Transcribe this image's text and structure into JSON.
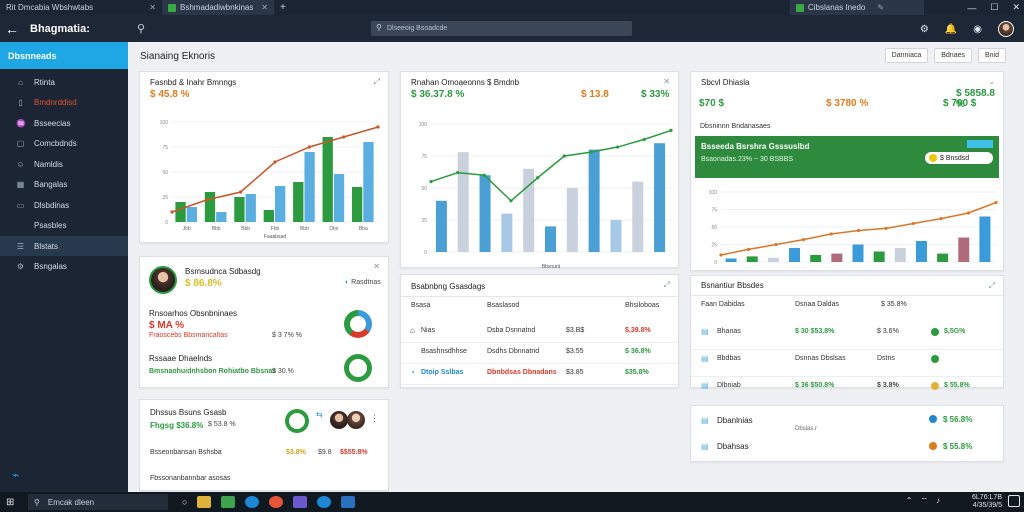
{
  "browser": {
    "tab1_title": "Rit Dmcabia Wbshwtabs",
    "tab2_title": "Bshmadadiwbnkinas",
    "tab3_title": "Cibslanas Inedo",
    "new_tab": "+",
    "icons": [
      "close-icon",
      "minimize-icon",
      "maximize-icon"
    ]
  },
  "header": {
    "title": "Bhagmatia:",
    "search_placeholder": "Dlseeoig Bsoadcde"
  },
  "sidebar": {
    "active_label": "Dbsnneads",
    "items": [
      {
        "label": "Rtinta",
        "icon": "home-icon"
      },
      {
        "label": "Bmdnrddisd",
        "icon": "doc-icon",
        "red": true
      },
      {
        "label": "Bsseecias",
        "icon": "chart-icon"
      },
      {
        "label": "Comcbdnds",
        "icon": "box-icon"
      },
      {
        "label": "Namldis",
        "icon": "user-icon"
      },
      {
        "label": "Bangalas",
        "icon": "grid-icon"
      },
      {
        "label": "Dlsbdinas",
        "icon": "folder-icon"
      },
      {
        "label": "Psasbles",
        "icon": ""
      },
      {
        "label": "Blstats",
        "icon": "list-icon",
        "selected": true
      },
      {
        "label": "Bsngalas",
        "icon": "settings-icon"
      }
    ]
  },
  "main": {
    "page_title": "Sianaing Eknoris",
    "buttons": [
      "Danniaca",
      "Bdnaes",
      "Bnid"
    ]
  },
  "card1": {
    "title": "Fasnbd & Inahr Bmnngs",
    "stat": "$ 45.8 %",
    "xlabel": "Faaabsad",
    "ticks_x": [
      "Jbb",
      "Bbb",
      "Bbb",
      "Fbb",
      "Bbb",
      "Dbs",
      "Bba"
    ]
  },
  "card2": {
    "title": "Rnahan Omoaeonns $ Bmdnb",
    "stat1": "$ 36.37.8 %",
    "stat2": "$ 13.8",
    "stat3": "$ 33%",
    "xlabel": "Bbsnunt"
  },
  "card3": {
    "title": "Sbcvl Dhiasla",
    "stat1": "$70 $",
    "stat2": "$ 3780 %",
    "stat3": "$ 5858.8 %",
    "stat4": "$ 790 $",
    "sub_label": "Dbsninnn Bndanasaes",
    "banner_title": "Bsseeda Bsrshra Gsssuslbd",
    "banner_sub": "Bsaonadas.23% ~ 30 BSBBS",
    "banner_btn": "$ Bnsdsd",
    "x": "28"
  },
  "card4": {
    "title": "Bsmsudnca Sdbasdg",
    "stat": "$ 86.8%",
    "row1_title": "Rnsoarhos Obsnbninaes",
    "row1_val": "$ MA %",
    "row1_sub": "Fraoscebs Bbsmancaltas",
    "row1_num": "$ 3 7% %",
    "row2_title": "Rssaae Dhaelnds",
    "row2_val": "Bmsnaohuidnhsbon Rohiatbo Bbsnas",
    "row2_num": "$ 30.%"
  },
  "card5": {
    "title": "Dhssus Bsuns Gsasb",
    "stat": "Fhgsg $36.8%",
    "sub1": "$ 53.8 %",
    "row_label": "Bsseonbansan Bshsba",
    "row_v1": "$3.8%",
    "row_v2": "$9.8",
    "row_v3": "$$55.8%",
    "row2_label": "Fbssonanbannbar asosas"
  },
  "card6": {
    "title": "Bsabnbng Gsasdags",
    "header": [
      "Bsasa",
      "Bsaslasod",
      "Bhsiloboas"
    ],
    "rows": [
      {
        "a": "Nias",
        "b": "Dsba Dsnnatnd",
        "c": "$3.B$",
        "d": "$,39.8%"
      },
      {
        "a": "Bsashnsdhhse",
        "b": "Dsdhs Dbnnatnd",
        "c": "$3.55",
        "d": "$ 36.8%"
      },
      {
        "a": "Dtoip Sslbas",
        "b": "Dbnbdsas Dbnadans",
        "c": "$3.85",
        "d": "$35.8%"
      }
    ]
  },
  "card7": {
    "title": "Bsnantiur Bbsdes",
    "header": [
      "Faan Dabidas",
      "Dsnaa Daldas",
      "$ 35.8%"
    ],
    "rows": [
      {
        "a": "Bhanas",
        "b": "$ 30 $53.8%",
        "c": "$ 3.6%",
        "d": "$,5G%"
      },
      {
        "a": "Bbdbas",
        "b": "Dsnnas Dbslsas",
        "c": "Dstns",
        "d": ""
      },
      {
        "a": "Dlbniab",
        "b": "$ 36 $50.8%",
        "c": "$ 3.8%",
        "d": "$ 55.8%"
      }
    ]
  },
  "card8": {
    "row1_a": "Dbanlnias",
    "row1_b": "$ 56.8%",
    "row1_sub": "Dbslas.r",
    "row2_a": "Dbahsas",
    "row2_b": "$ 55.8%"
  },
  "taskbar": {
    "search_text": "Emcak dleen",
    "date1": "6L76:L7B",
    "date2": "4/35/39/5"
  },
  "chart_data": [
    {
      "type": "bar",
      "name_hint": "card1",
      "categories": [
        "Jbb",
        "Bbb",
        "Bbb",
        "Fbb",
        "Bbb",
        "Dbs",
        "Bba"
      ],
      "series": [
        {
          "values": [
            20,
            30,
            25,
            12,
            40,
            85,
            35
          ],
          "color": "#2c9a3f"
        },
        {
          "values": [
            15,
            10,
            28,
            36,
            70,
            48,
            80
          ],
          "color": "#5aaee0"
        }
      ],
      "line": [
        10,
        22,
        30,
        60,
        75,
        85,
        95
      ],
      "ylim": [
        0,
        100
      ]
    },
    {
      "type": "bar",
      "name_hint": "card2",
      "series": [
        {
          "values": [
            40,
            78,
            60,
            30,
            65,
            20,
            50,
            80,
            25,
            55,
            85
          ],
          "color": "#4a9fd4"
        }
      ],
      "line": [
        55,
        62,
        60,
        40,
        58,
        75,
        78,
        82,
        88,
        95
      ],
      "ylim": [
        0,
        100
      ]
    },
    {
      "type": "bar",
      "name_hint": "card3",
      "series": [
        {
          "values": [
            5,
            8,
            6,
            20,
            10,
            12,
            25,
            15,
            20,
            30,
            12,
            35,
            65
          ],
          "color": "#3b9ad8"
        }
      ],
      "line": [
        10,
        18,
        25,
        32,
        40,
        45,
        48,
        55,
        62,
        70,
        85
      ],
      "ylim": [
        0,
        100
      ]
    }
  ]
}
